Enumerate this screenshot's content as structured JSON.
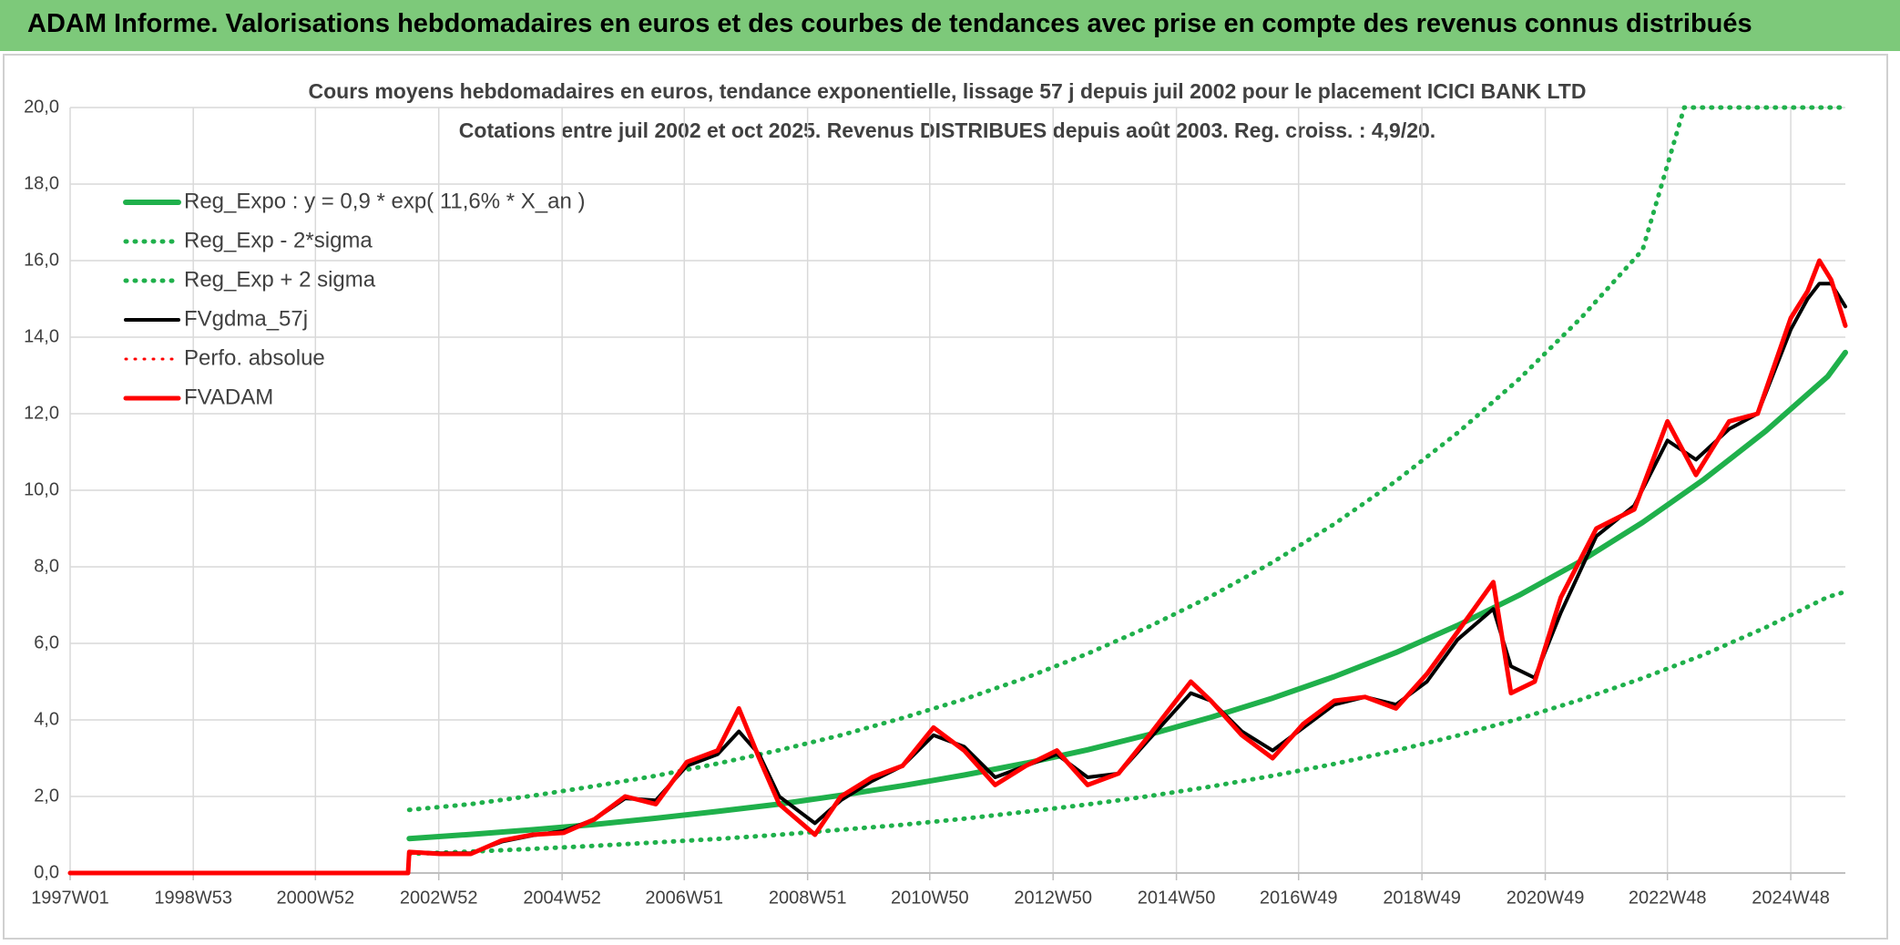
{
  "header": {
    "title": "ADAM Informe. Valorisations hebdomadaires en euros et des courbes de tendances avec prise en compte des revenus connus distribués"
  },
  "chart_data": {
    "type": "line",
    "title": "Cours moyens hebdomadaires en euros, tendance exponentielle, lissage 57 j depuis juil 2002 pour le placement ICICI BANK LTD",
    "subtitle": "Cotations entre juil 2002  et oct 2025. Revenus DISTRIBUES depuis août 2003. Reg. croiss. : 4,9/20.",
    "xlim": [
      "1997W01",
      "2025W42"
    ],
    "xticks": [
      "1997W01",
      "1998W53",
      "2000W52",
      "2002W52",
      "2004W52",
      "2006W51",
      "2008W51",
      "2010W50",
      "2012W50",
      "2014W50",
      "2016W49",
      "2018W49",
      "2020W49",
      "2022W48",
      "2024W48"
    ],
    "ylim": [
      0,
      20
    ],
    "yticks": [
      {
        "value": 0,
        "label": "0,0"
      },
      {
        "value": 2,
        "label": "2,0"
      },
      {
        "value": 4,
        "label": "4,0"
      },
      {
        "value": 6,
        "label": "6,0"
      },
      {
        "value": 8,
        "label": "8,0"
      },
      {
        "value": 10,
        "label": "10,0"
      },
      {
        "value": 12,
        "label": "12,0"
      },
      {
        "value": 14,
        "label": "14,0"
      },
      {
        "value": 16,
        "label": "16,0"
      },
      {
        "value": 18,
        "label": "18,0"
      },
      {
        "value": 20,
        "label": "20,0"
      }
    ],
    "grid": true,
    "series": [
      {
        "name": "Reg_Expo : y = 0,9 * exp( 11,6% *  X_an )",
        "color": "#1fb04b",
        "dash": "solid",
        "width": 6,
        "x": [
          "2002W27",
          "2003W27",
          "2004W27",
          "2005W27",
          "2006W27",
          "2007W27",
          "2008W27",
          "2009W27",
          "2010W27",
          "2011W27",
          "2012W27",
          "2013W27",
          "2014W27",
          "2015W27",
          "2016W27",
          "2017W27",
          "2018W27",
          "2019W27",
          "2020W27",
          "2021W27",
          "2022W27",
          "2023W27",
          "2024W27",
          "2025W27",
          "2025W42"
        ],
        "values": [
          0.9,
          1.01,
          1.13,
          1.27,
          1.43,
          1.61,
          1.8,
          2.03,
          2.28,
          2.56,
          2.87,
          3.22,
          3.62,
          4.07,
          4.57,
          5.13,
          5.76,
          6.47,
          7.26,
          8.15,
          9.16,
          10.29,
          11.55,
          12.97,
          13.6
        ]
      },
      {
        "name": "Reg_Exp - 2*sigma",
        "color": "#1fb04b",
        "dash": "dot",
        "width": 5,
        "x": [
          "2002W27",
          "2003W27",
          "2004W27",
          "2005W27",
          "2006W27",
          "2007W27",
          "2008W27",
          "2009W27",
          "2010W27",
          "2011W27",
          "2012W27",
          "2013W27",
          "2014W27",
          "2015W27",
          "2016W27",
          "2017W27",
          "2018W27",
          "2019W27",
          "2020W27",
          "2021W27",
          "2022W27",
          "2023W27",
          "2024W27",
          "2025W27",
          "2025W42"
        ],
        "values": [
          0.5,
          0.56,
          0.63,
          0.71,
          0.8,
          0.89,
          1.0,
          1.13,
          1.26,
          1.42,
          1.6,
          1.79,
          2.01,
          2.26,
          2.54,
          2.85,
          3.2,
          3.59,
          4.03,
          4.53,
          5.09,
          5.71,
          6.42,
          7.21,
          7.35
        ]
      },
      {
        "name": "Reg_Exp + 2 sigma",
        "color": "#1fb04b",
        "dash": "dot",
        "width": 5,
        "x": [
          "2002W27",
          "2003W27",
          "2004W27",
          "2005W27",
          "2006W27",
          "2007W27",
          "2008W27",
          "2009W27",
          "2010W27",
          "2011W27",
          "2012W27",
          "2013W27",
          "2014W27",
          "2015W27",
          "2016W27",
          "2017W27",
          "2018W27",
          "2019W27",
          "2020W27",
          "2021W27",
          "2022W27",
          "2023W10",
          "2024W27",
          "2025W27",
          "2025W42"
        ],
        "values": [
          1.65,
          1.8,
          2.02,
          2.27,
          2.54,
          2.86,
          3.21,
          3.6,
          4.05,
          4.54,
          5.1,
          5.73,
          6.44,
          7.23,
          8.12,
          9.12,
          10.24,
          11.5,
          12.91,
          14.5,
          16.28,
          20,
          20,
          20,
          20
        ]
      },
      {
        "name": "FVgdma_57j",
        "color": "#000000",
        "dash": "solid",
        "width": 4,
        "x": [
          "2002W27",
          "2003W01",
          "2003W27",
          "2004W01",
          "2004W27",
          "2005W01",
          "2005W27",
          "2006W01",
          "2006W27",
          "2007W01",
          "2007W27",
          "2007W45",
          "2008W10",
          "2008W27",
          "2009W05",
          "2009W27",
          "2010W01",
          "2010W27",
          "2011W01",
          "2011W27",
          "2012W01",
          "2012W27",
          "2013W01",
          "2013W27",
          "2014W01",
          "2014W27",
          "2015W10",
          "2015W27",
          "2016W01",
          "2016W27",
          "2017W01",
          "2017W27",
          "2018W01",
          "2018W27",
          "2019W01",
          "2019W27",
          "2020W05",
          "2020W20",
          "2020W40",
          "2021W10",
          "2021W40",
          "2022W20",
          "2022W48",
          "2023W20",
          "2023W48",
          "2024W20",
          "2024W48",
          "2025W10",
          "2025W20",
          "2025W30",
          "2025W42"
        ],
        "values": [
          0.55,
          0.52,
          0.52,
          0.82,
          0.98,
          1.1,
          1.4,
          1.95,
          1.9,
          2.8,
          3.1,
          3.7,
          3.1,
          2.0,
          1.3,
          1.9,
          2.4,
          2.8,
          3.6,
          3.3,
          2.5,
          2.8,
          3.1,
          2.5,
          2.6,
          3.5,
          4.7,
          4.5,
          3.7,
          3.2,
          3.8,
          4.4,
          4.6,
          4.4,
          5.0,
          6.1,
          6.9,
          5.4,
          5.1,
          6.8,
          8.8,
          9.6,
          11.3,
          10.8,
          11.6,
          12.0,
          14.2,
          15.0,
          15.4,
          15.4,
          14.8
        ]
      },
      {
        "name": "Perfo. absolue",
        "color": "#ff0000",
        "dash": "dot",
        "width": 3,
        "x": [
          "1997W01",
          "2002W26",
          "2002W27",
          "2003W01",
          "2003W27",
          "2004W01",
          "2004W27",
          "2005W01",
          "2005W27",
          "2006W01",
          "2006W27",
          "2007W01",
          "2007W27",
          "2007W45",
          "2008W10",
          "2008W27",
          "2009W05",
          "2009W27",
          "2010W01",
          "2010W27",
          "2011W01",
          "2011W27",
          "2012W01",
          "2012W27",
          "2013W01",
          "2013W27",
          "2014W01",
          "2014W27",
          "2015W10",
          "2015W27",
          "2016W01",
          "2016W27",
          "2017W01",
          "2017W27",
          "2018W01",
          "2018W27",
          "2019W01",
          "2019W27",
          "2020W05",
          "2020W20",
          "2020W40",
          "2021W10",
          "2021W40",
          "2022W20",
          "2022W48",
          "2023W20",
          "2023W48",
          "2024W20",
          "2024W48",
          "2025W10",
          "2025W20",
          "2025W30",
          "2025W42"
        ],
        "values": [
          0,
          0,
          0.55,
          0.5,
          0.5,
          0.85,
          1.0,
          1.05,
          1.4,
          2.0,
          1.8,
          2.9,
          3.2,
          4.3,
          3.0,
          1.8,
          1.0,
          2.0,
          2.5,
          2.8,
          3.8,
          3.2,
          2.3,
          2.8,
          3.2,
          2.3,
          2.6,
          3.6,
          5.0,
          4.5,
          3.6,
          3.0,
          3.9,
          4.5,
          4.6,
          4.3,
          5.2,
          6.3,
          7.6,
          4.7,
          5.0,
          7.2,
          9.0,
          9.5,
          11.8,
          10.4,
          11.8,
          12.0,
          14.5,
          15.2,
          16.0,
          15.5,
          14.3
        ]
      },
      {
        "name": "FVADAM",
        "color": "#ff0000",
        "dash": "solid",
        "width": 5,
        "x": [
          "1997W01",
          "2002W26",
          "2002W27",
          "2003W01",
          "2003W27",
          "2004W01",
          "2004W27",
          "2005W01",
          "2005W27",
          "2006W01",
          "2006W27",
          "2007W01",
          "2007W27",
          "2007W45",
          "2008W10",
          "2008W27",
          "2009W05",
          "2009W27",
          "2010W01",
          "2010W27",
          "2011W01",
          "2011W27",
          "2012W01",
          "2012W27",
          "2013W01",
          "2013W27",
          "2014W01",
          "2014W27",
          "2015W10",
          "2015W27",
          "2016W01",
          "2016W27",
          "2017W01",
          "2017W27",
          "2018W01",
          "2018W27",
          "2019W01",
          "2019W27",
          "2020W05",
          "2020W20",
          "2020W40",
          "2021W10",
          "2021W40",
          "2022W20",
          "2022W48",
          "2023W20",
          "2023W48",
          "2024W20",
          "2024W48",
          "2025W10",
          "2025W20",
          "2025W30",
          "2025W42"
        ],
        "values": [
          0,
          0,
          0.55,
          0.5,
          0.5,
          0.85,
          1.0,
          1.05,
          1.4,
          2.0,
          1.8,
          2.9,
          3.2,
          4.3,
          3.0,
          1.8,
          1.0,
          2.0,
          2.5,
          2.8,
          3.8,
          3.2,
          2.3,
          2.8,
          3.2,
          2.3,
          2.6,
          3.6,
          5.0,
          4.5,
          3.6,
          3.0,
          3.9,
          4.5,
          4.6,
          4.3,
          5.2,
          6.3,
          7.6,
          4.7,
          5.0,
          7.2,
          9.0,
          9.5,
          11.8,
          10.4,
          11.8,
          12.0,
          14.5,
          15.2,
          16.0,
          15.5,
          14.3
        ]
      }
    ]
  }
}
